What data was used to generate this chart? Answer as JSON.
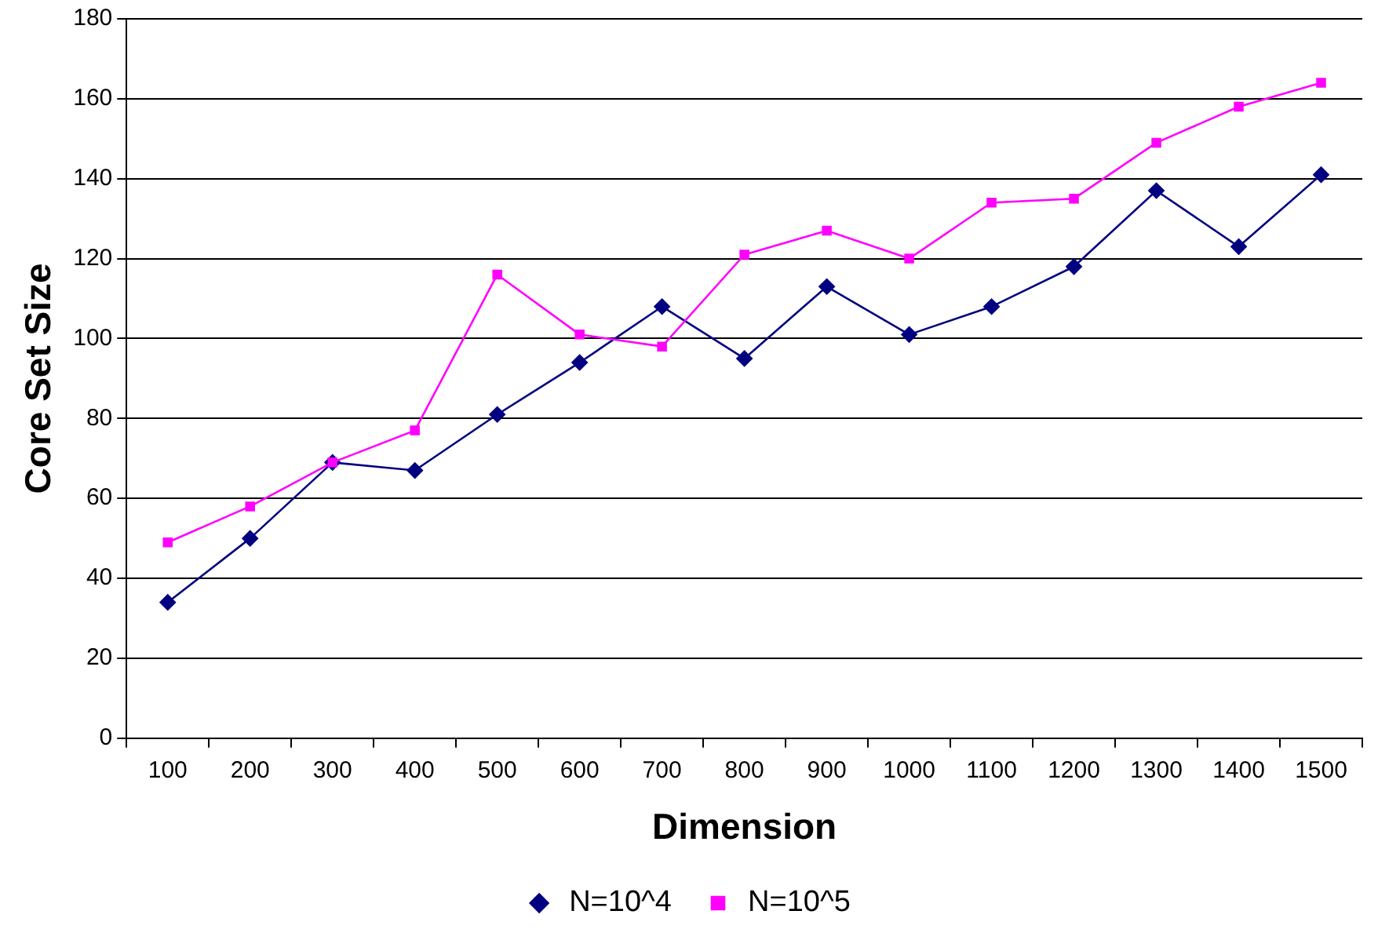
{
  "chart_data": {
    "type": "line",
    "xlabel": "Dimension",
    "ylabel": "Core Set Size",
    "categories": [
      "100",
      "200",
      "300",
      "400",
      "500",
      "600",
      "700",
      "800",
      "900",
      "1000",
      "1100",
      "1200",
      "1300",
      "1400",
      "1500"
    ],
    "series": [
      {
        "name": "N=10^4",
        "color": "#000080",
        "marker": "diamond",
        "values": [
          34,
          50,
          69,
          67,
          81,
          94,
          108,
          95,
          113,
          101,
          108,
          118,
          137,
          123,
          141
        ]
      },
      {
        "name": "N=10^5",
        "color": "#ff00ff",
        "marker": "square",
        "values": [
          49,
          58,
          69,
          77,
          116,
          101,
          98,
          121,
          127,
          120,
          134,
          135,
          149,
          158,
          164
        ]
      }
    ],
    "ylim": [
      0,
      180
    ],
    "yticks": [
      0,
      20,
      40,
      60,
      80,
      100,
      120,
      140,
      160,
      180
    ],
    "grid": "y",
    "legend": "bottom",
    "line_style": "solid"
  }
}
